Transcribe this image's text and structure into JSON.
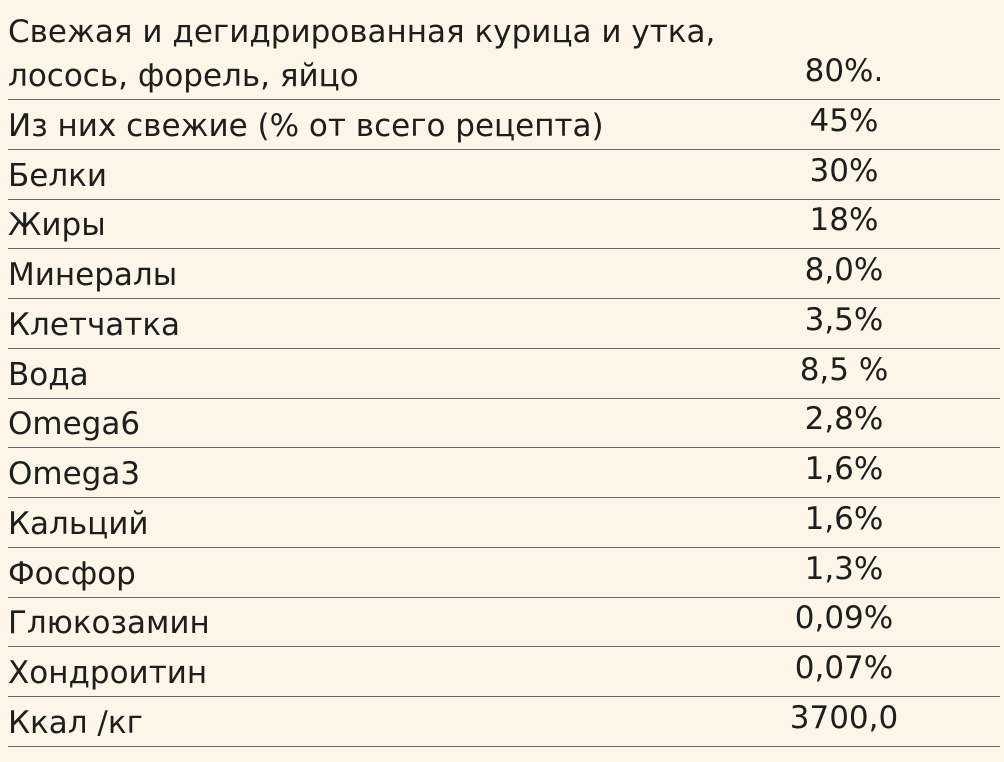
{
  "table": {
    "rows": [
      [
        "Свежая и дегидрированная курица и утка, лосось, форель, яйцо",
        "80%."
      ],
      [
        "Из них свежие (% от всего рецепта)",
        "45%"
      ],
      [
        "Белки",
        "30%"
      ],
      [
        "Жиры",
        "18%"
      ],
      [
        "Минералы",
        "8,0%"
      ],
      [
        "Клетчатка",
        "3,5%"
      ],
      [
        "Вода",
        "8,5 %"
      ],
      [
        "Omega6",
        "2,8%"
      ],
      [
        "Omega3",
        "1,6%"
      ],
      [
        "Кальций",
        "1,6%"
      ],
      [
        "Фосфор",
        "1,3%"
      ],
      [
        "Глюкозамин",
        "0,09%"
      ],
      [
        "Хондроитин",
        "0,07%"
      ],
      [
        "Ккал /кг",
        "3700,0"
      ]
    ]
  }
}
